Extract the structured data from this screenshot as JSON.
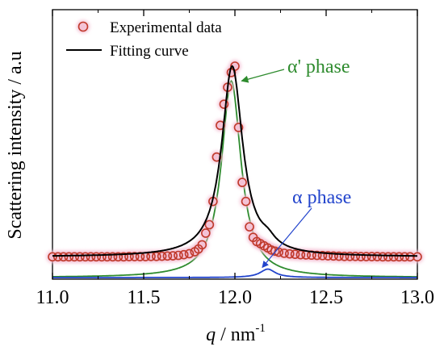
{
  "chart_data": {
    "type": "line",
    "xlabel_var": "q",
    "xlabel_unit": " / nm",
    "xlabel_exp": "-1",
    "ylabel": "Scattering intensity / a.u",
    "xlim": [
      11.0,
      13.0
    ],
    "ylim": [
      0,
      1.0
    ],
    "x_ticks": [
      "11.0",
      "11.5",
      "12.0",
      "12.5",
      "13.0"
    ],
    "grid": false,
    "legend": {
      "position": "top-left",
      "entries": [
        {
          "label": "Experimental data",
          "marker": "circle",
          "color": "#c0392b",
          "glow": "#f4c2d6"
        },
        {
          "label": "Fitting curve",
          "marker": "line",
          "color": "#000000"
        }
      ]
    },
    "annotations": [
      {
        "text": "α' phase",
        "color": "#2e8b2e",
        "points_to": [
          12.01,
          0.93
        ]
      },
      {
        "text": "α phase",
        "color": "#2244cc",
        "points_to": [
          12.15,
          0.04
        ]
      }
    ],
    "series": [
      {
        "name": "Experimental data",
        "style": "markers",
        "color": "#c0392b",
        "x": [
          11.0,
          11.03,
          11.06,
          11.09,
          11.12,
          11.15,
          11.18,
          11.21,
          11.24,
          11.27,
          11.3,
          11.33,
          11.36,
          11.39,
          11.42,
          11.45,
          11.48,
          11.51,
          11.54,
          11.57,
          11.6,
          11.63,
          11.66,
          11.69,
          11.72,
          11.75,
          11.78,
          11.8,
          11.82,
          11.84,
          11.86,
          11.88,
          11.9,
          11.92,
          11.94,
          11.96,
          11.98,
          12.0,
          12.02,
          12.04,
          12.06,
          12.08,
          12.1,
          12.12,
          12.14,
          12.16,
          12.18,
          12.2,
          12.22,
          12.24,
          12.27,
          12.3,
          12.33,
          12.36,
          12.39,
          12.42,
          12.45,
          12.48,
          12.51,
          12.54,
          12.57,
          12.6,
          12.63,
          12.66,
          12.69,
          12.72,
          12.75,
          12.78,
          12.81,
          12.84,
          12.87,
          12.9,
          12.93,
          12.96,
          13.0
        ],
        "y": [
          0.098,
          0.098,
          0.098,
          0.098,
          0.098,
          0.098,
          0.098,
          0.098,
          0.098,
          0.098,
          0.098,
          0.098,
          0.098,
          0.098,
          0.099,
          0.099,
          0.099,
          0.099,
          0.1,
          0.1,
          0.101,
          0.102,
          0.103,
          0.105,
          0.108,
          0.113,
          0.122,
          0.135,
          0.155,
          0.21,
          0.25,
          0.36,
          0.57,
          0.72,
          0.82,
          0.9,
          0.97,
          1.0,
          0.71,
          0.45,
          0.36,
          0.24,
          0.19,
          0.17,
          0.16,
          0.15,
          0.14,
          0.13,
          0.125,
          0.12,
          0.115,
          0.112,
          0.11,
          0.108,
          0.107,
          0.106,
          0.105,
          0.104,
          0.103,
          0.102,
          0.101,
          0.1,
          0.1,
          0.1,
          0.099,
          0.099,
          0.099,
          0.099,
          0.098,
          0.098,
          0.098,
          0.098,
          0.098,
          0.098,
          0.098
        ]
      },
      {
        "name": "Fitting curve",
        "style": "line",
        "color": "#000000",
        "peaks": [
          {
            "center": 11.985,
            "height": 0.9,
            "width": 0.07
          },
          {
            "center": 12.18,
            "height": 0.035,
            "width": 0.05
          }
        ],
        "baseline": 0.098
      },
      {
        "name": "α' phase",
        "style": "line",
        "color": "#2e8b2e",
        "peaks": [
          {
            "center": 11.98,
            "height": 0.93,
            "width": 0.065
          }
        ],
        "baseline": 0.0
      },
      {
        "name": "α phase",
        "style": "line",
        "color": "#2244cc",
        "peaks": [
          {
            "center": 12.18,
            "height": 0.04,
            "width": 0.05
          }
        ],
        "baseline": 0.0
      }
    ]
  }
}
